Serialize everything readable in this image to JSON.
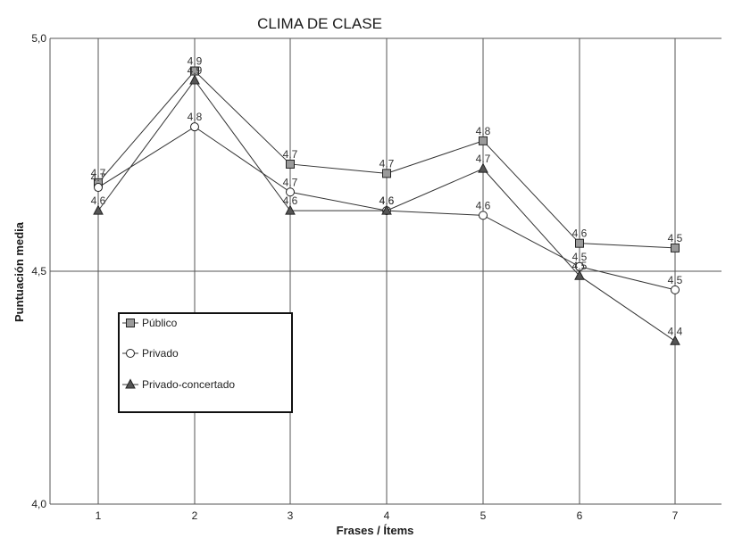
{
  "chart_data": {
    "type": "line",
    "title": "CLIMA DE CLASE",
    "xlabel": "Frases / Ítems",
    "ylabel": "Puntuación media",
    "categories": [
      "1",
      "2",
      "3",
      "4",
      "5",
      "6",
      "7"
    ],
    "ylim": [
      4.0,
      5.0
    ],
    "yticks": [
      "4,0",
      "4,5",
      "5,0"
    ],
    "grid": true,
    "legend_position": "left-middle",
    "series": [
      {
        "name": "Público",
        "marker": "square",
        "values": [
          4.69,
          4.93,
          4.73,
          4.71,
          4.78,
          4.56,
          4.55
        ],
        "labels": [
          "4.7",
          "4.9",
          "4.7",
          "4.7",
          "4.8",
          "4.6",
          "4.5"
        ]
      },
      {
        "name": "Privado",
        "marker": "circle",
        "values": [
          4.68,
          4.81,
          4.67,
          4.63,
          4.62,
          4.51,
          4.46
        ],
        "labels": [
          "4.7",
          "4.8",
          "4.7",
          "4.6",
          "4.6",
          "4.5",
          "4.5"
        ]
      },
      {
        "name": "Privado-concertado",
        "marker": "triangle",
        "values": [
          4.63,
          4.91,
          4.63,
          4.63,
          4.72,
          4.49,
          4.35
        ],
        "labels": [
          "4.6",
          "4.9",
          "4.6",
          "4.6",
          "4.7",
          "4.5",
          "4.4"
        ]
      }
    ],
    "colors": {
      "line": "#333333",
      "square_fill": "#9a9a9a",
      "circle_fill": "#ffffff",
      "triangle_fill": "#555555",
      "grid": "#555555"
    }
  }
}
